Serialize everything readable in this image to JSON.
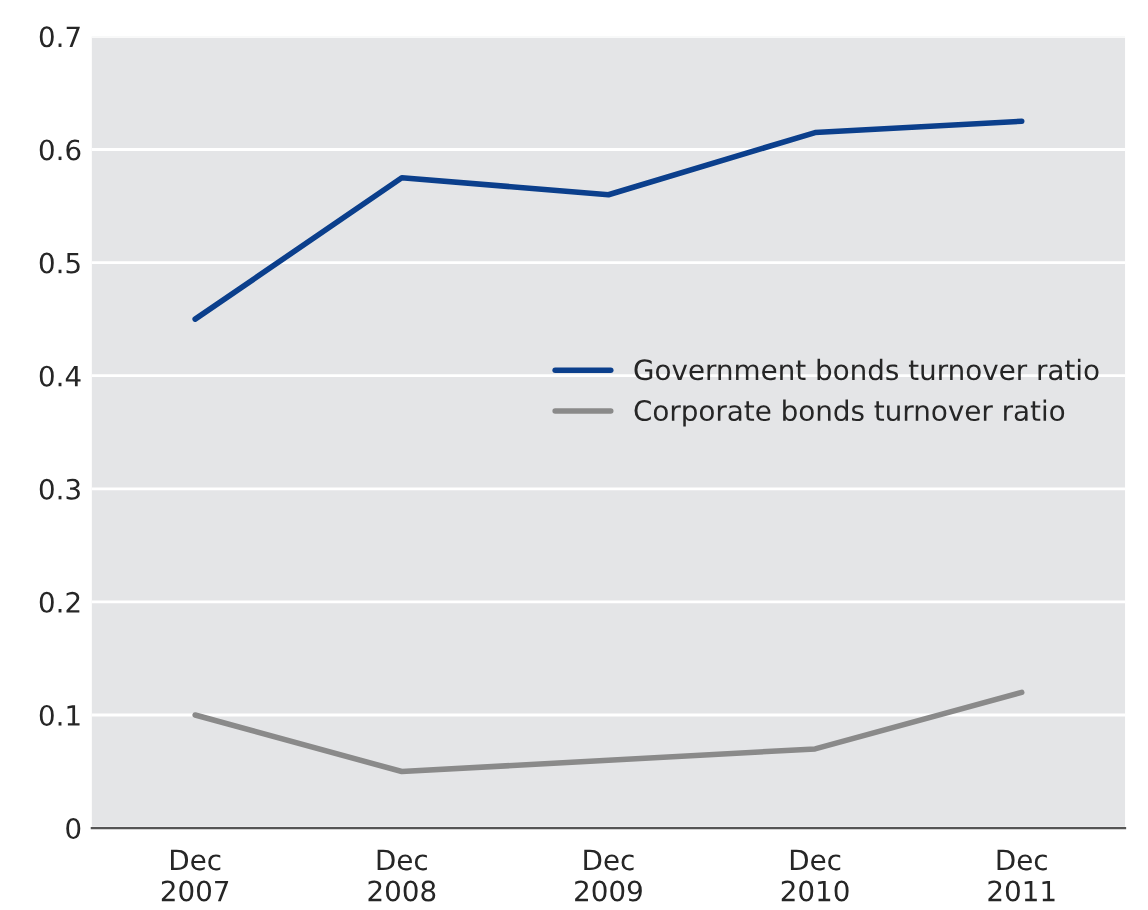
{
  "chart_data": {
    "type": "line",
    "categories": [
      "Dec\n2007",
      "Dec\n2008",
      "Dec\n2009",
      "Dec\n2010",
      "Dec\n2011"
    ],
    "series": [
      {
        "name": "Government bonds turnover ratio",
        "color": "#0b3f8c",
        "values": [
          0.45,
          0.575,
          0.56,
          0.615,
          0.625
        ]
      },
      {
        "name": "Corporate bonds turnover ratio",
        "color": "#8a8a8a",
        "values": [
          0.1,
          0.05,
          0.06,
          0.07,
          0.12
        ]
      }
    ],
    "ylim": [
      0,
      0.7
    ],
    "yticks": [
      0,
      0.1,
      0.2,
      0.3,
      0.4,
      0.5,
      0.6,
      0.7
    ],
    "grid": "y",
    "legend": "right",
    "marker": "none",
    "line_style": "solid"
  }
}
